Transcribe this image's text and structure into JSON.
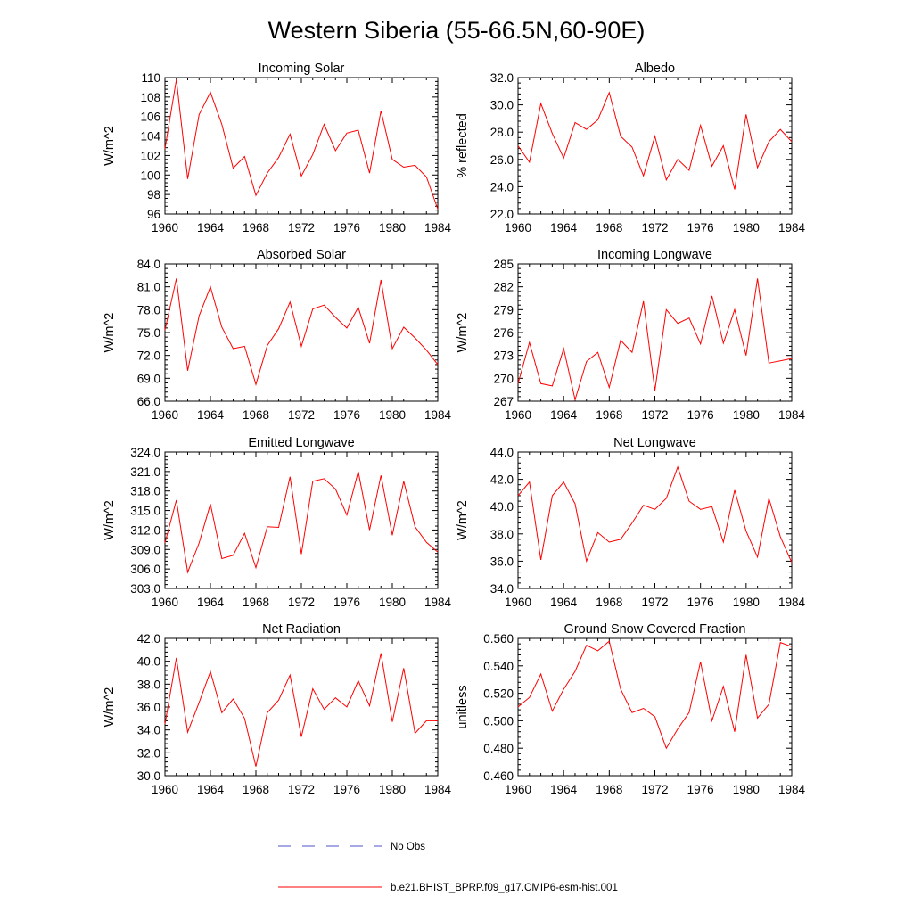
{
  "figure": {
    "title": "Western Siberia (55-66.5N,60-90E)"
  },
  "legend": {
    "entries": [
      {
        "label": "No Obs",
        "color": "#5050c8",
        "style": "dashed"
      },
      {
        "label": "b.e21.BHIST_BPRP.f09_g17.CMIP6-esm-hist.001",
        "color": "#ff0000",
        "style": "solid"
      }
    ]
  },
  "chart_data": [
    {
      "type": "line",
      "title": "Incoming Solar",
      "xlabel": "",
      "ylabel": "W/m^2",
      "xlim": [
        1960,
        1984
      ],
      "ylim": [
        96,
        110
      ],
      "xticks": [
        1960,
        1964,
        1968,
        1972,
        1976,
        1980,
        1984
      ],
      "yticks": [
        "96",
        "98",
        "100",
        "102",
        "104",
        "106",
        "108",
        "110"
      ],
      "grid": false,
      "series": [
        {
          "color": "#ff0000",
          "x": [
            1960,
            1961,
            1962,
            1963,
            1964,
            1965,
            1966,
            1967,
            1968,
            1969,
            1970,
            1971,
            1972,
            1973,
            1974,
            1975,
            1976,
            1977,
            1978,
            1979,
            1980,
            1981,
            1982,
            1983,
            1984
          ],
          "y": [
            102.7,
            109.8,
            99.6,
            106.2,
            108.5,
            105.2,
            100.7,
            101.9,
            97.9,
            100.2,
            101.8,
            104.2,
            99.9,
            102.1,
            105.2,
            102.5,
            104.3,
            104.6,
            100.2,
            106.6,
            101.6,
            100.8,
            101.0,
            99.8,
            96.5
          ]
        }
      ]
    },
    {
      "type": "line",
      "title": "Albedo",
      "xlabel": "",
      "ylabel": "% reflected",
      "xlim": [
        1960,
        1984
      ],
      "ylim": [
        22,
        32
      ],
      "xticks": [
        1960,
        1964,
        1968,
        1972,
        1976,
        1980,
        1984
      ],
      "yticks": [
        "22.0",
        "24.0",
        "26.0",
        "28.0",
        "30.0",
        "32.0"
      ],
      "grid": false,
      "series": [
        {
          "color": "#ff0000",
          "x": [
            1960,
            1961,
            1962,
            1963,
            1964,
            1965,
            1966,
            1967,
            1968,
            1969,
            1970,
            1971,
            1972,
            1973,
            1974,
            1975,
            1976,
            1977,
            1978,
            1979,
            1980,
            1981,
            1982,
            1983,
            1984
          ],
          "y": [
            27.0,
            25.8,
            30.1,
            27.9,
            26.1,
            28.7,
            28.2,
            28.9,
            30.9,
            27.7,
            26.9,
            24.8,
            27.7,
            24.5,
            26.0,
            25.2,
            28.5,
            25.5,
            27.0,
            23.8,
            29.3,
            25.4,
            27.3,
            28.2,
            27.3
          ]
        }
      ]
    },
    {
      "type": "line",
      "title": "Absorbed Solar",
      "xlabel": "",
      "ylabel": "W/m^2",
      "xlim": [
        1960,
        1984
      ],
      "ylim": [
        66,
        84
      ],
      "xticks": [
        1960,
        1964,
        1968,
        1972,
        1976,
        1980,
        1984
      ],
      "yticks": [
        "66.0",
        "69.0",
        "72.0",
        "75.0",
        "78.0",
        "81.0",
        "84.0"
      ],
      "grid": false,
      "series": [
        {
          "color": "#ff0000",
          "x": [
            1960,
            1961,
            1962,
            1963,
            1964,
            1965,
            1966,
            1967,
            1968,
            1969,
            1970,
            1971,
            1972,
            1973,
            1974,
            1975,
            1976,
            1977,
            1978,
            1979,
            1980,
            1981,
            1982,
            1983,
            1984
          ],
          "y": [
            75.3,
            82.1,
            70.0,
            77.2,
            81.0,
            75.7,
            72.9,
            73.2,
            68.2,
            73.3,
            75.5,
            79.0,
            73.2,
            78.1,
            78.6,
            77.0,
            75.6,
            78.3,
            73.6,
            81.9,
            72.9,
            75.7,
            74.3,
            72.7,
            70.8
          ]
        }
      ]
    },
    {
      "type": "line",
      "title": "Incoming Longwave",
      "xlabel": "",
      "ylabel": "W/m^2",
      "xlim": [
        1960,
        1984
      ],
      "ylim": [
        267,
        285
      ],
      "xticks": [
        1960,
        1964,
        1968,
        1972,
        1976,
        1980,
        1984
      ],
      "yticks": [
        "267",
        "270",
        "273",
        "276",
        "279",
        "282",
        "285"
      ],
      "grid": false,
      "series": [
        {
          "color": "#ff0000",
          "x": [
            1960,
            1961,
            1962,
            1963,
            1964,
            1965,
            1966,
            1967,
            1968,
            1969,
            1970,
            1971,
            1972,
            1973,
            1974,
            1975,
            1976,
            1977,
            1978,
            1979,
            1980,
            1981,
            1982,
            1983,
            1984
          ],
          "y": [
            269.3,
            274.7,
            269.3,
            269.0,
            273.9,
            267.2,
            272.2,
            273.4,
            268.8,
            275.0,
            273.4,
            280.1,
            268.4,
            279.0,
            277.2,
            277.9,
            274.5,
            280.8,
            274.6,
            279.0,
            273.0,
            283.1,
            272.0,
            272.3,
            272.6
          ]
        }
      ]
    },
    {
      "type": "line",
      "title": "Emitted Longwave",
      "xlabel": "",
      "ylabel": "W/m^2",
      "xlim": [
        1960,
        1984
      ],
      "ylim": [
        303,
        324
      ],
      "xticks": [
        1960,
        1964,
        1968,
        1972,
        1976,
        1980,
        1984
      ],
      "yticks": [
        "303.0",
        "306.0",
        "309.0",
        "312.0",
        "315.0",
        "318.0",
        "321.0",
        "324.0"
      ],
      "grid": false,
      "series": [
        {
          "color": "#ff0000",
          "x": [
            1960,
            1961,
            1962,
            1963,
            1964,
            1965,
            1966,
            1967,
            1968,
            1969,
            1970,
            1971,
            1972,
            1973,
            1974,
            1975,
            1976,
            1977,
            1978,
            1979,
            1980,
            1981,
            1982,
            1983,
            1984
          ],
          "y": [
            310.0,
            316.6,
            305.5,
            310.0,
            316.0,
            307.6,
            308.1,
            311.5,
            306.2,
            312.5,
            312.4,
            320.2,
            308.3,
            319.5,
            319.9,
            318.3,
            314.3,
            321.0,
            312.0,
            320.4,
            311.2,
            319.5,
            312.5,
            310.1,
            308.6
          ]
        }
      ]
    },
    {
      "type": "line",
      "title": "Net Longwave",
      "xlabel": "",
      "ylabel": "W/m^2",
      "xlim": [
        1960,
        1984
      ],
      "ylim": [
        34,
        44
      ],
      "xticks": [
        1960,
        1964,
        1968,
        1972,
        1976,
        1980,
        1984
      ],
      "yticks": [
        "34.0",
        "36.0",
        "38.0",
        "40.0",
        "42.0",
        "44.0"
      ],
      "grid": false,
      "series": [
        {
          "color": "#ff0000",
          "x": [
            1960,
            1961,
            1962,
            1963,
            1964,
            1965,
            1966,
            1967,
            1968,
            1969,
            1970,
            1971,
            1972,
            1973,
            1974,
            1975,
            1976,
            1977,
            1978,
            1979,
            1980,
            1981,
            1982,
            1983,
            1984
          ],
          "y": [
            40.8,
            41.8,
            36.1,
            40.8,
            41.8,
            40.2,
            36.0,
            38.1,
            37.4,
            37.6,
            38.8,
            40.1,
            39.8,
            40.6,
            42.9,
            40.4,
            39.8,
            40.0,
            37.4,
            41.2,
            38.2,
            36.3,
            40.6,
            37.8,
            35.9
          ]
        }
      ]
    },
    {
      "type": "line",
      "title": "Net Radiation",
      "xlabel": "",
      "ylabel": "W/m^2",
      "xlim": [
        1960,
        1984
      ],
      "ylim": [
        30,
        42
      ],
      "xticks": [
        1960,
        1964,
        1968,
        1972,
        1976,
        1980,
        1984
      ],
      "yticks": [
        "30.0",
        "32.0",
        "34.0",
        "36.0",
        "38.0",
        "40.0",
        "42.0"
      ],
      "grid": false,
      "series": [
        {
          "color": "#ff0000",
          "x": [
            1960,
            1961,
            1962,
            1963,
            1964,
            1965,
            1966,
            1967,
            1968,
            1969,
            1970,
            1971,
            1972,
            1973,
            1974,
            1975,
            1976,
            1977,
            1978,
            1979,
            1980,
            1981,
            1982,
            1983,
            1984
          ],
          "y": [
            34.5,
            40.3,
            33.8,
            36.4,
            39.1,
            35.5,
            36.7,
            35.0,
            30.8,
            35.5,
            36.6,
            38.8,
            33.4,
            37.6,
            35.8,
            36.8,
            36.0,
            38.3,
            36.1,
            40.7,
            34.7,
            39.4,
            33.7,
            34.8,
            34.8
          ]
        }
      ]
    },
    {
      "type": "line",
      "title": "Ground Snow Covered Fraction",
      "xlabel": "",
      "ylabel": "unitless",
      "xlim": [
        1960,
        1984
      ],
      "ylim": [
        0.46,
        0.56
      ],
      "xticks": [
        1960,
        1964,
        1968,
        1972,
        1976,
        1980,
        1984
      ],
      "yticks": [
        "0.460",
        "0.480",
        "0.500",
        "0.520",
        "0.540",
        "0.560"
      ],
      "grid": false,
      "series": [
        {
          "color": "#ff0000",
          "x": [
            1960,
            1961,
            1962,
            1963,
            1964,
            1965,
            1966,
            1967,
            1968,
            1969,
            1970,
            1971,
            1972,
            1973,
            1974,
            1975,
            1976,
            1977,
            1978,
            1979,
            1980,
            1981,
            1982,
            1983,
            1984
          ],
          "y": [
            0.51,
            0.517,
            0.534,
            0.507,
            0.523,
            0.536,
            0.555,
            0.551,
            0.558,
            0.523,
            0.506,
            0.509,
            0.503,
            0.48,
            0.494,
            0.506,
            0.543,
            0.5,
            0.525,
            0.492,
            0.548,
            0.502,
            0.512,
            0.557,
            0.554
          ]
        }
      ]
    }
  ]
}
